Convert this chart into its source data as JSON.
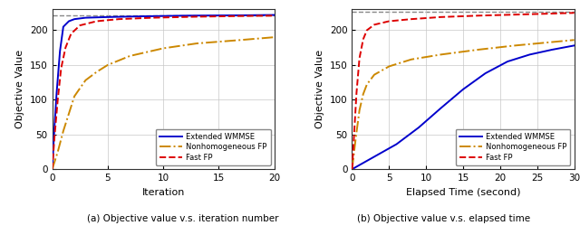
{
  "left_plot": {
    "xlabel": "Iteration",
    "ylabel": "Objective Value",
    "xlim": [
      0,
      20
    ],
    "ylim": [
      0,
      230
    ],
    "xticks": [
      0,
      5,
      10,
      15,
      20
    ],
    "yticks": [
      0,
      50,
      100,
      150,
      200
    ],
    "caption": "(a) Objective value v.s. iteration number",
    "upper_bound": 222,
    "wmmse": {
      "x": [
        0,
        0.2,
        0.4,
        0.7,
        1.0,
        1.5,
        2.0,
        3.0,
        5.0,
        8.0,
        12.0,
        17.0,
        20.0
      ],
      "y": [
        0,
        60,
        110,
        170,
        205,
        213,
        216,
        218,
        219,
        220,
        221,
        221.5,
        222
      ]
    },
    "nonhomo": {
      "x": [
        0,
        0.5,
        1,
        1.5,
        2,
        3,
        4,
        5,
        7,
        10,
        13,
        17,
        20
      ],
      "y": [
        0,
        25,
        55,
        80,
        105,
        128,
        140,
        150,
        163,
        174,
        181,
        186,
        190
      ]
    },
    "fastfp": {
      "x": [
        0,
        0.2,
        0.5,
        0.8,
        1.2,
        1.7,
        2.5,
        4.0,
        6.0,
        9.0,
        13.0,
        17.0,
        20.0
      ],
      "y": [
        0,
        45,
        100,
        145,
        175,
        195,
        207,
        213,
        216,
        218,
        219.5,
        220.5,
        221
      ]
    }
  },
  "right_plot": {
    "xlabel": "Elapsed Time (second)",
    "ylabel": "Objective Value",
    "xlim": [
      0,
      30
    ],
    "ylim": [
      0,
      230
    ],
    "xticks": [
      0,
      5,
      10,
      15,
      20,
      25,
      30
    ],
    "yticks": [
      0,
      50,
      100,
      150,
      200
    ],
    "caption": "(b) Objective value v.s. elapsed time",
    "upper_bound": 226,
    "wmmse": {
      "x": [
        0,
        1,
        3,
        6,
        9,
        12,
        15,
        18,
        21,
        24,
        27,
        30
      ],
      "y": [
        0,
        6,
        18,
        36,
        60,
        88,
        115,
        138,
        155,
        165,
        172,
        178
      ]
    },
    "nonhomo": {
      "x": [
        0,
        0.5,
        1.0,
        1.5,
        2.0,
        3.0,
        5.0,
        8.0,
        12.0,
        17.0,
        22.0,
        27.0,
        30.0
      ],
      "y": [
        0,
        45,
        85,
        108,
        122,
        136,
        148,
        158,
        165,
        172,
        178,
        183,
        186
      ]
    },
    "fastfp": {
      "x": [
        0,
        0.3,
        0.6,
        1.0,
        1.5,
        2.0,
        3.0,
        5.0,
        8.0,
        12.0,
        17.0,
        22.0,
        27.0,
        30.0
      ],
      "y": [
        0,
        55,
        110,
        160,
        187,
        200,
        208,
        213,
        216,
        219,
        221,
        222.5,
        224,
        225
      ]
    }
  },
  "colors": {
    "wmmse": "#0000CC",
    "nonhomo": "#CC8800",
    "fastfp": "#DD0000"
  },
  "legend": [
    "Extended WMMSE",
    "Nonhomogeneous FP",
    "Fast FP"
  ]
}
